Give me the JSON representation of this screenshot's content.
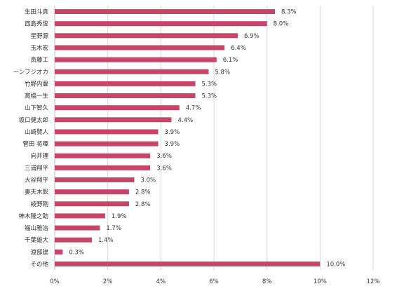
{
  "chart_data": {
    "type": "bar",
    "orientation": "horizontal",
    "categories": [
      "生田斗真",
      "西島秀俊",
      "星野源",
      "玉木宏",
      "斎藤工",
      "ーンフジオカ",
      "竹野内豊",
      "高橋一生",
      "山下智久",
      "坂口健太郎",
      "山崎賢人",
      "菅田 将暉",
      "向井理",
      "三浦翔平",
      "大谷翔平",
      "妻夫木聡",
      "綾野剛",
      "神木隆之助",
      "福山雅治",
      "千葉雄大",
      "渡部建",
      "その他"
    ],
    "values": [
      8.3,
      8.0,
      6.9,
      6.4,
      6.1,
      5.8,
      5.3,
      5.3,
      4.7,
      4.4,
      3.9,
      3.9,
      3.6,
      3.6,
      3.0,
      2.8,
      2.8,
      1.9,
      1.7,
      1.4,
      0.3,
      10.0
    ],
    "value_labels": [
      "8.3%",
      "8.0%",
      "6.9%",
      "6.4%",
      "6.1%",
      "5.8%",
      "5.3%",
      "5.3%",
      "4.7%",
      "4.4%",
      "3.9%",
      "3.9%",
      "3.6%",
      "3.6%",
      "3.0%",
      "2.8%",
      "2.8%",
      "1.9%",
      "1.7%",
      "1.4%",
      "0.3%",
      "10.0%"
    ],
    "x_ticks": [
      0,
      2,
      4,
      6,
      8,
      10,
      12
    ],
    "x_tick_labels": [
      "0%",
      "2%",
      "4%",
      "6%",
      "8%",
      "10%",
      "12%"
    ],
    "xlim": [
      0,
      12
    ],
    "grid": true,
    "bar_color": "#c8456a",
    "grid_color": "#d9d9d9"
  }
}
